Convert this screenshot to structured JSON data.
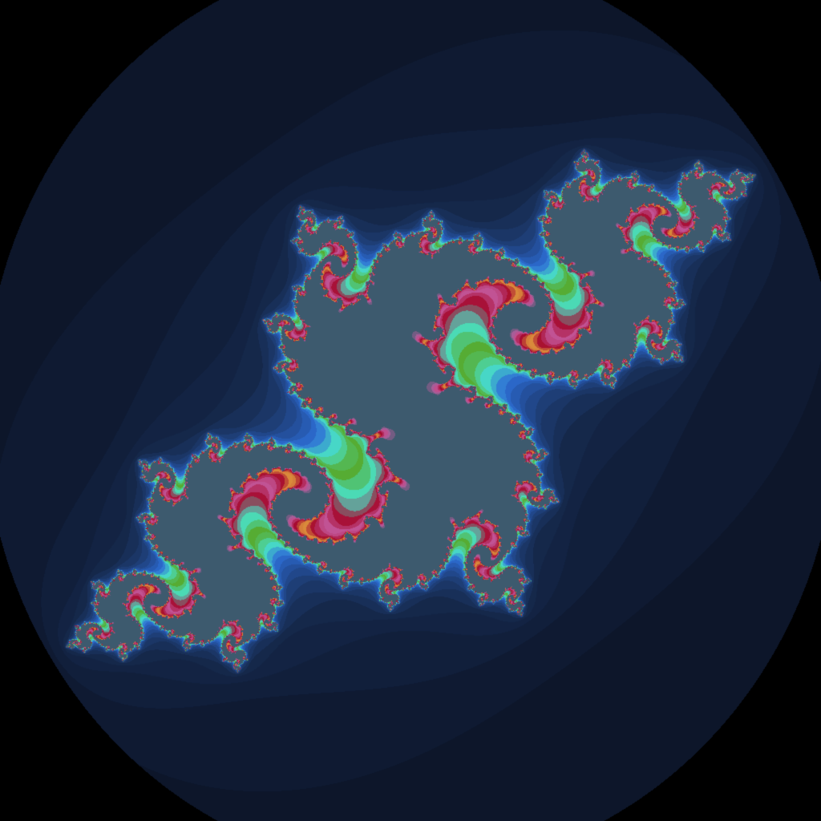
{
  "image": {
    "kind": "julia-set-fractal",
    "background_color": "#000000",
    "palette": {
      "outer_band_1": "#0b1121",
      "outer_band_2": "#101d37",
      "outer_band_3": "#15284b",
      "outer_band_4": "#1d3a6e",
      "outer_band_5": "#2451a0",
      "outer_band_6": "#2e6fd6",
      "inner_teal": "#49e0c6",
      "inner_green": "#58a622",
      "inner_crimson": "#a60a2f",
      "inner_magenta": "#c55ea3",
      "inner_gold": "#e3a23d",
      "core_slate": "#3d5a6e"
    }
  }
}
